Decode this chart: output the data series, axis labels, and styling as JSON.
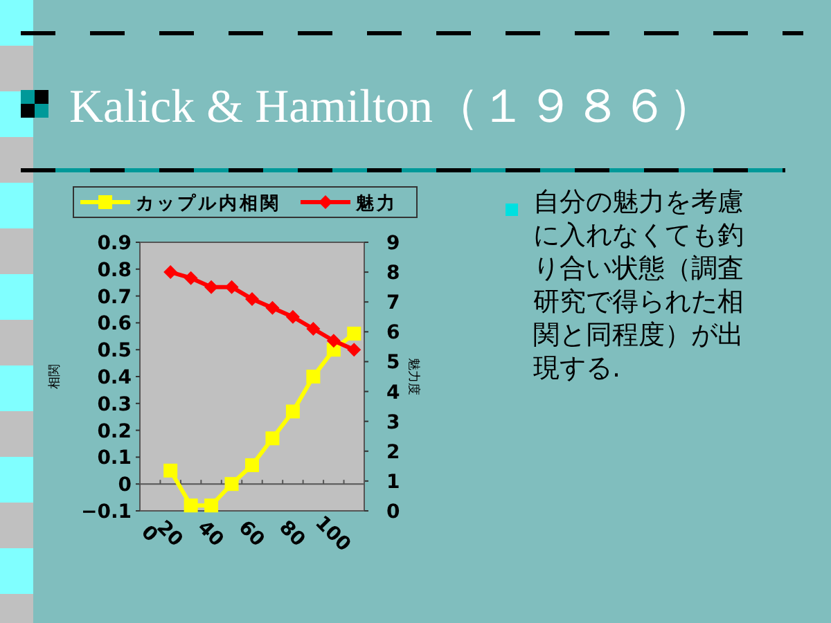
{
  "chart_data": {
    "type": "line",
    "title": "Kalick & Hamilton（１９８６）",
    "categories": [
      "0",
      "20",
      null,
      "40",
      null,
      "60",
      null,
      "80",
      null,
      "100",
      null
    ],
    "series": [
      {
        "name": "カップル内相関",
        "color": "#ffff00",
        "marker": "square",
        "values": [
          null,
          0.05,
          -0.08,
          -0.08,
          0.0,
          0.07,
          0.17,
          0.27,
          0.4,
          0.5,
          0.56
        ]
      },
      {
        "name": "魅力",
        "color": "#ff0000",
        "marker": "diamond",
        "axis": "y2",
        "values": [
          null,
          8.0,
          7.8,
          7.5,
          7.5,
          7.1,
          6.8,
          6.5,
          6.1,
          5.7,
          5.4
        ]
      }
    ],
    "ylabel": "相関",
    "y2label": "魅力度",
    "ylim": [
      -0.1,
      0.9
    ],
    "yticks": [
      {
        "value": -0.1,
        "label": "−0.1"
      },
      0,
      0.1,
      0.2,
      0.3,
      0.4,
      0.5,
      0.6,
      0.7,
      0.8,
      0.9
    ],
    "y2lim": [
      0,
      9
    ],
    "y2ticks": [
      0,
      1,
      2,
      3,
      4,
      5,
      6,
      7,
      8,
      9
    ],
    "legend": "top",
    "annotations": [
      "自分の魅力を考慮に入れなくても釣り合い状態（調査研究で得られた相関と同程度）が出現する."
    ]
  }
}
